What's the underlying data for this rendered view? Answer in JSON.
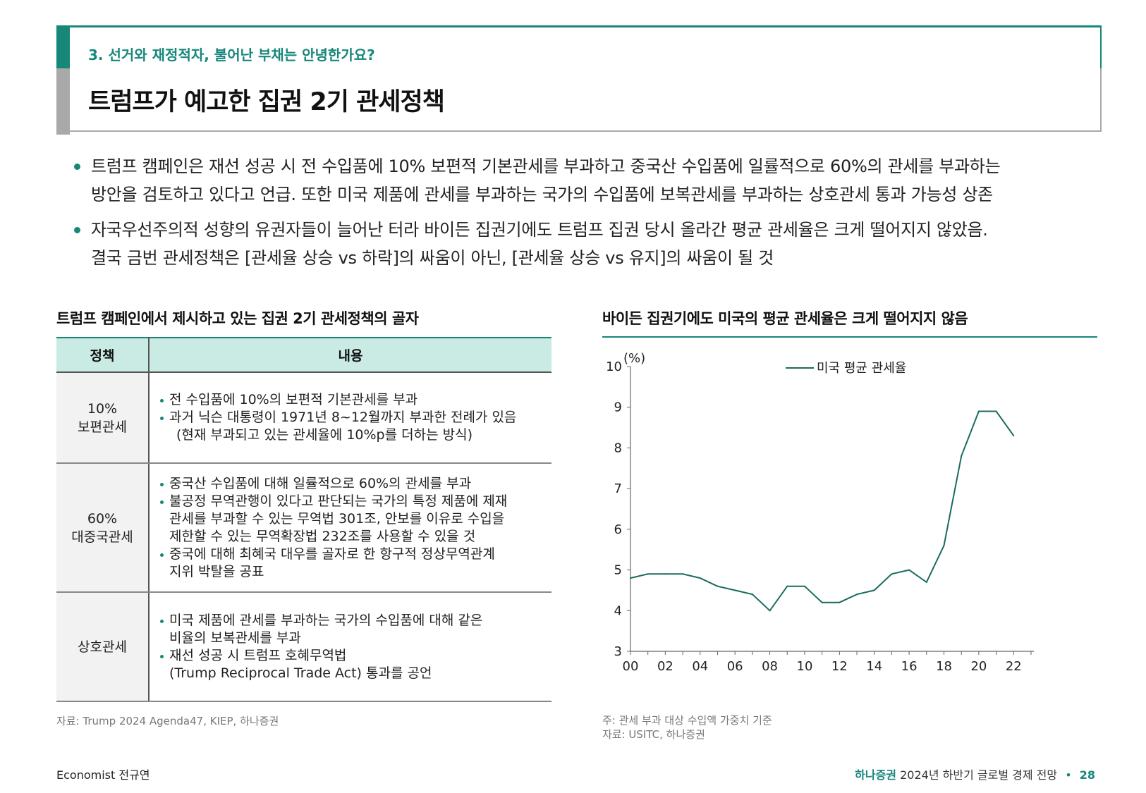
{
  "header": {
    "section": "3. 선거와 재정적자, 불어난 부채는 안녕한가요?",
    "title": "트럼프가 예고한 집권 2기 관세정책"
  },
  "bullets": [
    [
      "트럼프 캠페인은 재선 성공 시 전 수입품에 10% 보편적 기본관세를 부과하고 중국산 수입품에 일률적으로 60%의 관세를 부과하는",
      "방안을 검토하고 있다고 언급. 또한 미국 제품에 관세를 부과하는 국가의 수입품에 보복관세를 부과하는 상호관세 통과 가능성 상존"
    ],
    [
      "자국우선주의적 성향의 유권자들이 늘어난 터라 바이든 집권기에도 트럼프 집권 당시 올라간 평균 관세율은 크게 떨어지지 않았음.",
      "결국 금번 관세정책은 [관세율 상승 vs 하락]의 싸움이 아닌, [관세율 상승 vs 유지]의 싸움이 될 것"
    ]
  ],
  "left_panel": {
    "title": "트럼프 캠페인에서 제시하고 있는 집권 2기 관세정책의 골자",
    "headers": [
      "정책",
      "내용"
    ],
    "rows": [
      {
        "policy": [
          "10%",
          "보편관세"
        ],
        "items": [
          [
            "전 수입품에 10%의 보편적 기본관세를 부과"
          ],
          [
            "과거 닉슨 대통령이 1971년 8~12월까지 부과한 전례가 있음",
            "(현재 부과되고 있는 관세율에 10%p를 더하는 방식)"
          ]
        ]
      },
      {
        "policy": [
          "60%",
          "대중국관세"
        ],
        "items": [
          [
            "중국산 수입품에 대해 일률적으로 60%의 관세를 부과"
          ],
          [
            "불공정 무역관행이 있다고 판단되는 국가의 특정 제품에 제재",
            "관세를 부과할 수 있는 무역법 301조, 안보를 이유로 수입을",
            "제한할 수 있는 무역확장법 232조를 사용할 수 있을 것"
          ],
          [
            "중국에 대해 최혜국 대우를 골자로 한 항구적 정상무역관계",
            "지위 박탈을 공표"
          ]
        ]
      },
      {
        "policy": [
          "상호관세"
        ],
        "items": [
          [
            "미국 제품에 관세를 부과하는 국가의 수입품에 대해 같은",
            "비율의 보복관세를 부과"
          ],
          [
            "재선 성공 시 트럼프 호혜무역법",
            "(Trump Reciprocal Trade Act) 통과를 공언"
          ]
        ]
      }
    ],
    "source": "자료: Trump 2024 Agenda47, KIEP, 하나증권"
  },
  "right_panel": {
    "title": "바이든 집권기에도 미국의 평균 관세율은 크게 떨어지지 않음",
    "note": "주: 관세 부과 대상 수입액 가중치 기준",
    "source": "자료: USITC, 하나증권"
  },
  "chart_data": {
    "type": "line",
    "title": "바이든 집권기에도 미국의 평균 관세율은 크게 떨어지지 않음",
    "ylabel": "(%)",
    "xlabel": "",
    "ylim": [
      3,
      10
    ],
    "yticks": [
      "3",
      "4",
      "5",
      "6",
      "7",
      "8",
      "9",
      "10"
    ],
    "xlim": [
      2000,
      2023
    ],
    "xticks": [
      "00",
      "02",
      "04",
      "06",
      "08",
      "10",
      "12",
      "14",
      "16",
      "18",
      "20",
      "22"
    ],
    "legend": "top-center",
    "series": [
      {
        "name": "미국 평균 관세율",
        "color": "#1a6b5e",
        "x": [
          2000,
          2001,
          2002,
          2003,
          2004,
          2005,
          2006,
          2007,
          2008,
          2009,
          2010,
          2011,
          2012,
          2013,
          2014,
          2015,
          2016,
          2017,
          2018,
          2019,
          2020,
          2021,
          2022
        ],
        "values": [
          4.8,
          4.9,
          4.9,
          4.9,
          4.8,
          4.6,
          4.5,
          4.4,
          4.0,
          4.6,
          4.6,
          4.2,
          4.2,
          4.4,
          4.5,
          4.9,
          5.0,
          4.7,
          5.6,
          7.8,
          8.9,
          8.9,
          8.3
        ]
      }
    ]
  },
  "footer": {
    "author": "Economist 전규연",
    "brand": "하나증권",
    "report": "2024년 하반기 글로벌 경제 전망",
    "separator": "•",
    "page": "28"
  }
}
